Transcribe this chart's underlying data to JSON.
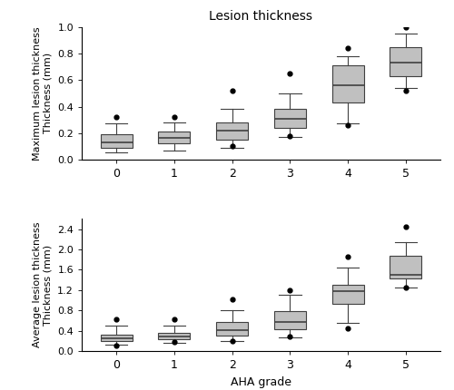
{
  "title": "Lesion thickness",
  "top_ylabel": "Maximum lesion thickness\nThickness (mm)",
  "bottom_ylabel": "Average lesion thickness\nThickness (mm)",
  "xlabel": "AHA grade",
  "categories": [
    0,
    1,
    2,
    3,
    4,
    5
  ],
  "top": {
    "ylim": [
      0.0,
      1.0
    ],
    "yticks": [
      0.0,
      0.2,
      0.4,
      0.6,
      0.8,
      1.0
    ],
    "boxes": [
      {
        "whislo": 0.05,
        "q1": 0.09,
        "med": 0.13,
        "q3": 0.19,
        "whishi": 0.27,
        "fliers": [
          0.32
        ]
      },
      {
        "whislo": 0.07,
        "q1": 0.12,
        "med": 0.16,
        "q3": 0.21,
        "whishi": 0.28,
        "fliers": [
          0.32
        ]
      },
      {
        "whislo": 0.09,
        "q1": 0.15,
        "med": 0.22,
        "q3": 0.28,
        "whishi": 0.38,
        "fliers": [
          0.1,
          0.52
        ]
      },
      {
        "whislo": 0.17,
        "q1": 0.24,
        "med": 0.31,
        "q3": 0.38,
        "whishi": 0.5,
        "fliers": [
          0.18,
          0.65
        ]
      },
      {
        "whislo": 0.27,
        "q1": 0.43,
        "med": 0.56,
        "q3": 0.71,
        "whishi": 0.78,
        "fliers": [
          0.26,
          0.84
        ]
      },
      {
        "whislo": 0.54,
        "q1": 0.63,
        "med": 0.73,
        "q3": 0.85,
        "whishi": 0.95,
        "fliers": [
          0.52,
          1.0
        ]
      }
    ]
  },
  "bottom": {
    "ylim": [
      0.0,
      2.6
    ],
    "yticks": [
      0.0,
      0.4,
      0.8,
      1.2,
      1.6,
      2.0,
      2.4
    ],
    "boxes": [
      {
        "whislo": 0.12,
        "q1": 0.19,
        "med": 0.25,
        "q3": 0.33,
        "whishi": 0.5,
        "fliers": [
          0.1,
          0.62
        ]
      },
      {
        "whislo": 0.16,
        "q1": 0.24,
        "med": 0.29,
        "q3": 0.35,
        "whishi": 0.5,
        "fliers": [
          0.17,
          0.62
        ]
      },
      {
        "whislo": 0.19,
        "q1": 0.31,
        "med": 0.41,
        "q3": 0.58,
        "whishi": 0.8,
        "fliers": [
          0.19,
          1.02
        ]
      },
      {
        "whislo": 0.27,
        "q1": 0.42,
        "med": 0.58,
        "q3": 0.78,
        "whishi": 1.1,
        "fliers": [
          0.28,
          1.2
        ]
      },
      {
        "whislo": 0.55,
        "q1": 0.93,
        "med": 1.18,
        "q3": 1.3,
        "whishi": 1.65,
        "fliers": [
          0.44,
          1.85
        ]
      },
      {
        "whislo": 1.25,
        "q1": 1.42,
        "med": 1.5,
        "q3": 1.88,
        "whishi": 2.15,
        "fliers": [
          1.25,
          2.44
        ]
      }
    ]
  },
  "box_color": "#c0c0c0",
  "median_color": "#404040",
  "whisker_color": "#404040",
  "flier_color": "#000000",
  "box_width": 0.55
}
